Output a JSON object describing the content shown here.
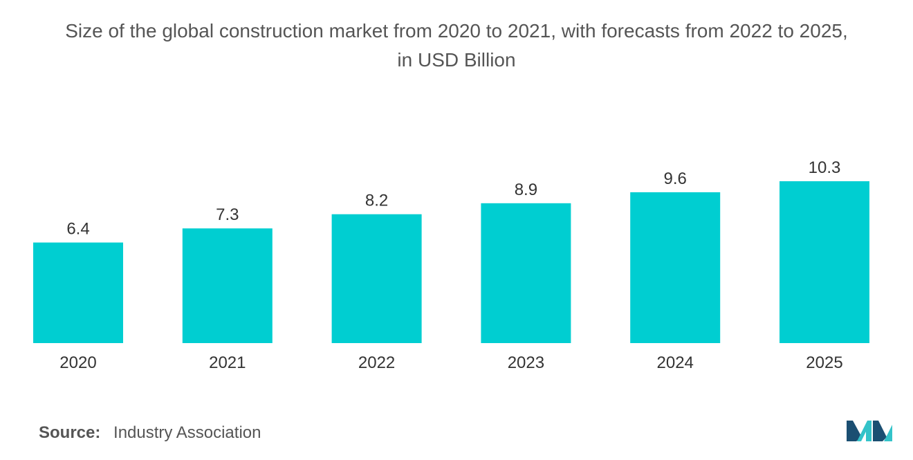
{
  "chart_data": {
    "type": "bar",
    "title_line1": "Size of the global construction market from 2020 to 2021, with forecasts from 2022 to 2025,",
    "title_line2": "in USD Billion",
    "categories": [
      "2020",
      "2021",
      "2022",
      "2023",
      "2024",
      "2025"
    ],
    "values": [
      6.4,
      7.3,
      8.2,
      8.9,
      9.6,
      10.3
    ],
    "value_labels": [
      "6.4",
      "7.3",
      "8.2",
      "8.9",
      "9.6",
      "10.3"
    ],
    "xlabel": "",
    "ylabel": "",
    "ylim": [
      0,
      10.3
    ],
    "grid": false,
    "legend": "none",
    "bar_color": "#00CED1"
  },
  "source": {
    "label": "Source:",
    "text": "Industry Association"
  },
  "colors": {
    "logo_dark": "#1B4F72",
    "logo_light": "#33C3C9"
  }
}
